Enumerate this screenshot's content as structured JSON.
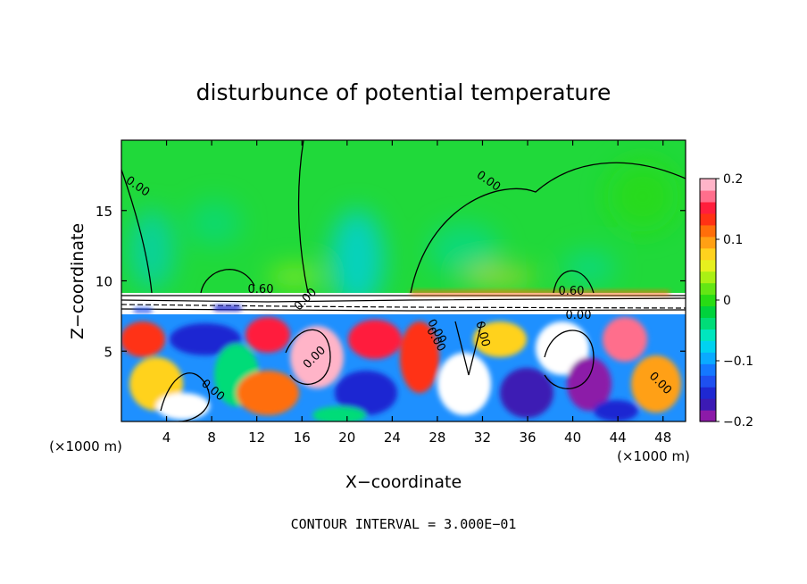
{
  "chart_data": {
    "type": "heatmap",
    "title": "disturbunce of potential temperature",
    "xlabel": "X−coordinate",
    "ylabel": "Z−coordinate",
    "x_unit": "(×1000 m)",
    "z_unit": "(×1000 m)",
    "xlim": [
      0,
      50
    ],
    "ylim": [
      0,
      20
    ],
    "x_ticks": [
      4,
      8,
      12,
      16,
      20,
      24,
      28,
      32,
      36,
      40,
      44,
      48
    ],
    "y_ticks": [
      5,
      10,
      15
    ],
    "colorbar": {
      "range": [
        -0.2,
        0.2
      ],
      "tick_labels": [
        "0.2",
        "0.1",
        "0",
        "−0.1",
        "−0.2"
      ],
      "tick_values": [
        0.2,
        0.1,
        0,
        -0.1,
        -0.2
      ],
      "colors": [
        "#8c1aa8",
        "#3c1ab4",
        "#1e28d2",
        "#1e50f0",
        "#1478ff",
        "#0aaaff",
        "#00d2f0",
        "#00e6be",
        "#00dc78",
        "#00d23c",
        "#28dc14",
        "#64e614",
        "#aaf014",
        "#e6f01e",
        "#ffd21e",
        "#ffa014",
        "#ff6e0a",
        "#ff3214",
        "#ff1e3c",
        "#ff6e8c",
        "#ffb4c8"
      ]
    },
    "contour_labels": [
      "0.00",
      "0.00",
      "0.60",
      "0.60",
      "0.00",
      "0.00",
      "0.00",
      "0.00",
      "0.00",
      "0.00",
      "0.00",
      "0.00"
    ],
    "footer": "CONTOUR INTERVAL = 3.000E−01"
  }
}
